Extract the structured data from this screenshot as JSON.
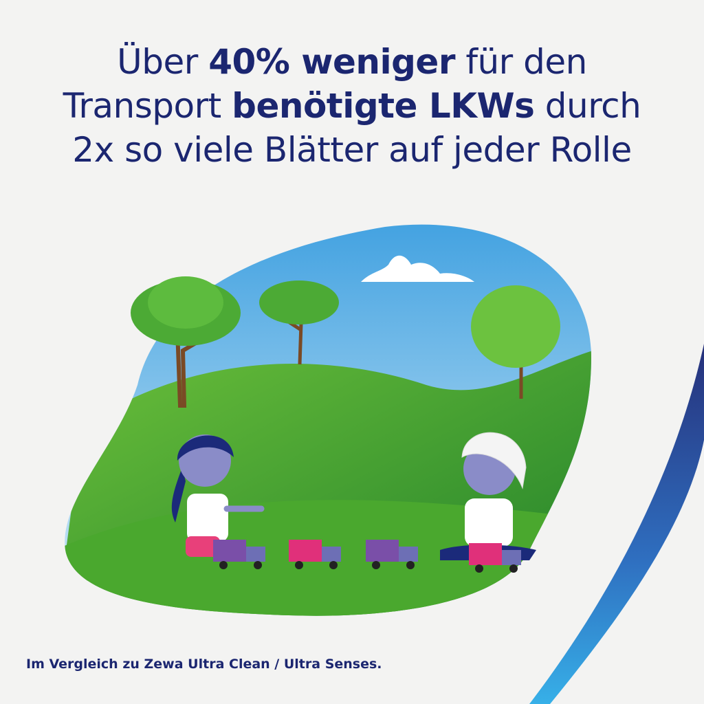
{
  "headline": {
    "line1": {
      "pre": "Über ",
      "bold": "40% weniger",
      "post": " für den"
    },
    "line2": {
      "pre": "Transport ",
      "bold": "benötigte LKWs",
      "post": " durch"
    },
    "line3": {
      "text": "2x so viele Blätter auf jeder Rolle"
    }
  },
  "footnote": "Im Vergleich zu Zewa Ultra Clean / Ultra Senses.",
  "colors": {
    "text": "#1b2670",
    "grass": "#3a9a2a",
    "sky": "#7cc3ea",
    "truck_purple": "#7a4fa8",
    "truck_pink": "#e0307a",
    "swoosh": "#2c3b8a"
  },
  "illustration": {
    "trucks": [
      "purple",
      "pink",
      "purple",
      "pink"
    ],
    "icons": [
      "tree-icon",
      "cloud-icon",
      "truck-icon",
      "child-icon"
    ]
  }
}
